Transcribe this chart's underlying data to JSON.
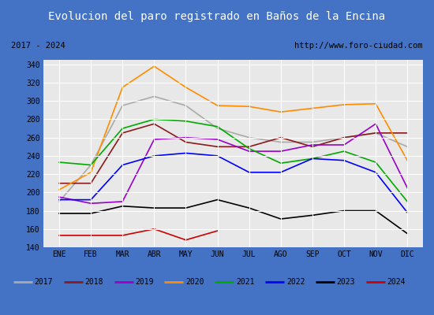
{
  "title": "Evolucion del paro registrado en Baños de la Encina",
  "subtitle_left": "2017 - 2024",
  "subtitle_right": "http://www.foro-ciudad.com",
  "months": [
    "ENE",
    "FEB",
    "MAR",
    "ABR",
    "MAY",
    "JUN",
    "JUL",
    "AGO",
    "SEP",
    "OCT",
    "NOV",
    "DIC"
  ],
  "ylim": [
    140,
    345
  ],
  "yticks": [
    140,
    160,
    180,
    200,
    220,
    240,
    260,
    280,
    300,
    320,
    340
  ],
  "series": {
    "2017": {
      "color": "#aaaaaa",
      "values": [
        190,
        230,
        295,
        305,
        295,
        270,
        260,
        255,
        255,
        260,
        265,
        250
      ]
    },
    "2018": {
      "color": "#8b1a1a",
      "values": [
        210,
        210,
        265,
        275,
        255,
        250,
        250,
        260,
        250,
        260,
        265,
        265
      ]
    },
    "2019": {
      "color": "#9900cc",
      "values": [
        195,
        188,
        190,
        258,
        260,
        258,
        245,
        245,
        252,
        252,
        275,
        205
      ]
    },
    "2020": {
      "color": "#ff8c00",
      "values": [
        203,
        222,
        315,
        338,
        315,
        295,
        294,
        288,
        292,
        296,
        297,
        235
      ]
    },
    "2021": {
      "color": "#00aa00",
      "values": [
        233,
        230,
        270,
        280,
        278,
        272,
        248,
        232,
        237,
        245,
        233,
        190
      ]
    },
    "2022": {
      "color": "#0000ff",
      "values": [
        192,
        192,
        230,
        240,
        243,
        240,
        222,
        222,
        237,
        235,
        222,
        178
      ]
    },
    "2023": {
      "color": "#000000",
      "values": [
        177,
        177,
        185,
        183,
        183,
        192,
        183,
        171,
        175,
        180,
        180,
        155
      ]
    },
    "2024": {
      "color": "#cc0000",
      "values": [
        153,
        153,
        153,
        160,
        148,
        158,
        null,
        null,
        null,
        null,
        null,
        null
      ]
    }
  },
  "title_bg": "#4472c4",
  "title_color": "#ffffff",
  "subtitle_bg": "#d4d4d4",
  "plot_bg": "#e8e8e8",
  "grid_color": "#ffffff",
  "border_color": "#4472c4",
  "legend_bg": "#f0f0f0"
}
